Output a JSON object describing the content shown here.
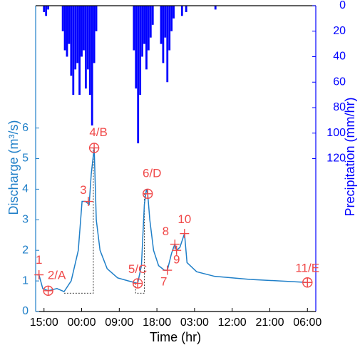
{
  "chart_data": {
    "type": "line",
    "x_label": "Time (hr)",
    "y_label": "Discharge (m³/s)",
    "y2_label": "Precipitation (mm/hr)",
    "xlim": [
      -2,
      65
    ],
    "xticks": [
      {
        "value": 0,
        "label": "15:00"
      },
      {
        "value": 9,
        "label": "00:00"
      },
      {
        "value": 18,
        "label": "09:00"
      },
      {
        "value": 27,
        "label": "18:00"
      },
      {
        "value": 36,
        "label": "03:00"
      },
      {
        "value": 45,
        "label": "12:00"
      },
      {
        "value": 54,
        "label": "21:00"
      },
      {
        "value": 63,
        "label": "06:00"
      }
    ],
    "ylim": [
      0,
      10
    ],
    "yticks": [
      0,
      1,
      2,
      3,
      4,
      5,
      6
    ],
    "y2lim": [
      0,
      240
    ],
    "y2ticks": [
      0,
      20,
      40,
      60,
      80,
      100,
      120
    ],
    "y2_inverted": true,
    "y_color": "#1f7fc8",
    "y2_color": "#0000ff",
    "series": [
      {
        "type": "line",
        "color": "#1f7fc8",
        "x": [
          -1.7,
          -1.2,
          -0.3,
          1.0,
          3.1,
          4.8,
          6.5,
          8.2,
          9.1,
          9.9,
          10.8,
          11.3,
          12.0,
          12.5,
          13.4,
          15.1,
          17.6,
          20.2,
          22.4,
          23.3,
          24.0,
          24.5,
          24.8,
          25.3,
          26.2,
          27.4,
          28.8,
          29.5,
          30.5,
          31.0,
          31.3,
          31.7,
          32.5,
          33.6,
          34.2,
          36.5,
          40.8,
          49.3,
          63.0
        ],
        "values": [
          1.2,
          1.2,
          0.75,
          0.68,
          0.75,
          0.65,
          1.0,
          2.0,
          3.6,
          3.6,
          3.5,
          4.5,
          5.35,
          3.0,
          2.0,
          1.4,
          1.1,
          1.0,
          0.92,
          1.5,
          3.5,
          4.0,
          3.85,
          3.0,
          2.0,
          1.5,
          1.35,
          1.35,
          1.9,
          2.1,
          2.2,
          2.0,
          2.1,
          2.55,
          1.6,
          1.3,
          1.15,
          1.05,
          0.95
        ]
      },
      {
        "type": "bar",
        "axis": "y2",
        "color": "#0000ff",
        "x": [
          0,
          0.5,
          1.0,
          4.5,
          5,
          5.5,
          6,
          6.5,
          7,
          7.5,
          8,
          8.5,
          9,
          9.5,
          10,
          10.5,
          11,
          11.5,
          12,
          12.5,
          21.5,
          22,
          22.5,
          23,
          23.5,
          24,
          24.5,
          25,
          25.5,
          26,
          28,
          28.5,
          29,
          29.5,
          30,
          30.5,
          31,
          33,
          34,
          41
        ],
        "values": [
          5,
          8,
          3,
          20,
          35,
          40,
          30,
          55,
          70,
          50,
          45,
          70,
          40,
          35,
          65,
          50,
          70,
          94,
          45,
          20,
          35,
          65,
          108,
          70,
          40,
          30,
          50,
          35,
          25,
          15,
          30,
          45,
          25,
          60,
          35,
          20,
          10,
          8,
          5,
          3
        ]
      }
    ],
    "dotted_lines": [
      {
        "x": [
          4.8,
          11.8,
          11.8
        ],
        "y": [
          0.6,
          0.6,
          5.35
        ]
      },
      {
        "x": [
          21.9,
          21.9,
          24.0,
          24.0
        ],
        "y": [
          0.92,
          0.6,
          0.6,
          3.9
        ]
      }
    ],
    "annotation_color": "#f04848",
    "annotations": [
      {
        "label": "1",
        "x": -1.2,
        "y": 1.2,
        "marker": "plus"
      },
      {
        "label": "2/A",
        "x": 1.0,
        "y": 0.68,
        "marker": "circle"
      },
      {
        "label": "3",
        "x": 10.6,
        "y": 3.6,
        "marker": "plus"
      },
      {
        "label": "4/B",
        "x": 12.0,
        "y": 5.35,
        "marker": "circle"
      },
      {
        "label": "5/C",
        "x": 22.4,
        "y": 0.92,
        "marker": "circle"
      },
      {
        "label": "6/D",
        "x": 24.8,
        "y": 3.85,
        "marker": "circle"
      },
      {
        "label": "7",
        "x": 29.5,
        "y": 1.35,
        "marker": "plus"
      },
      {
        "label": "8",
        "x": 31.3,
        "y": 2.2,
        "marker": "plus"
      },
      {
        "label": "9",
        "x": 31.7,
        "y": 2.0,
        "marker": "plus"
      },
      {
        "label": "10",
        "x": 33.6,
        "y": 2.55,
        "marker": "plus"
      },
      {
        "label": "11/E",
        "x": 63.0,
        "y": 0.95,
        "marker": "circle"
      }
    ]
  }
}
